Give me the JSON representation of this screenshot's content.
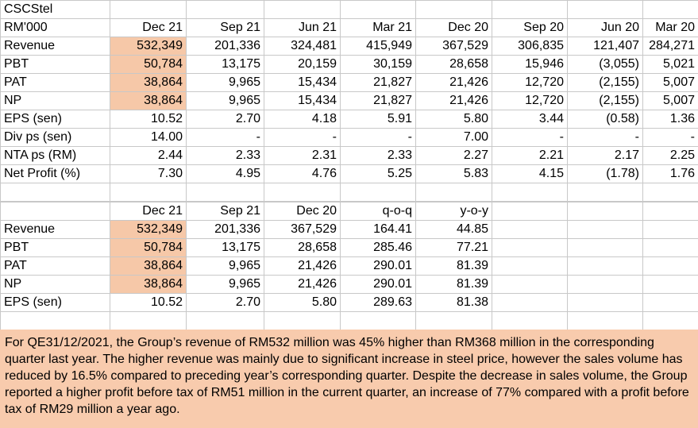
{
  "table1": {
    "title": "CSCStel",
    "unit": "RM'000",
    "columns": [
      "Dec 21",
      "Sep 21",
      "Jun 21",
      "Mar 21",
      "Dec 20",
      "Sep 20",
      "Jun 20",
      "Mar 20"
    ],
    "rows": [
      {
        "label": "Revenue",
        "values": [
          "532,349",
          "201,336",
          "324,481",
          "415,949",
          "367,529",
          "306,835",
          "121,407",
          "284,271"
        ]
      },
      {
        "label": "PBT",
        "values": [
          "50,784",
          "13,175",
          "20,159",
          "30,159",
          "28,658",
          "15,946",
          "(3,055)",
          "5,021"
        ]
      },
      {
        "label": "PAT",
        "values": [
          "38,864",
          "9,965",
          "15,434",
          "21,827",
          "21,426",
          "12,720",
          "(2,155)",
          "5,007"
        ]
      },
      {
        "label": "NP",
        "values": [
          "38,864",
          "9,965",
          "15,434",
          "21,827",
          "21,426",
          "12,720",
          "(2,155)",
          "5,007"
        ]
      },
      {
        "label": "EPS (sen)",
        "values": [
          "10.52",
          "2.70",
          "4.18",
          "5.91",
          "5.80",
          "3.44",
          "(0.58)",
          "1.36"
        ]
      },
      {
        "label": "Div ps (sen)",
        "values": [
          "14.00",
          "-",
          "-",
          "-",
          "7.00",
          "-",
          "-",
          "-"
        ]
      },
      {
        "label": "NTA ps (RM)",
        "values": [
          "2.44",
          "2.33",
          "2.31",
          "2.33",
          "2.27",
          "2.21",
          "2.17",
          "2.25"
        ]
      },
      {
        "label": "Net Profit (%)",
        "values": [
          "7.30",
          "4.95",
          "4.76",
          "5.25",
          "5.83",
          "4.15",
          "(1.78)",
          "1.76"
        ]
      }
    ]
  },
  "table2": {
    "columns": [
      "Dec 21",
      "Sep 21",
      "Dec 20",
      "q-o-q",
      "y-o-y"
    ],
    "rows": [
      {
        "label": "Revenue",
        "values": [
          "532,349",
          "201,336",
          "367,529",
          "164.41",
          "44.85"
        ]
      },
      {
        "label": "PBT",
        "values": [
          "50,784",
          "13,175",
          "28,658",
          "285.46",
          "77.21"
        ]
      },
      {
        "label": "PAT",
        "values": [
          "38,864",
          "9,965",
          "21,426",
          "290.01",
          "81.39"
        ]
      },
      {
        "label": "NP",
        "values": [
          "38,864",
          "9,965",
          "21,426",
          "290.01",
          "81.39"
        ]
      },
      {
        "label": "EPS (sen)",
        "values": [
          "10.52",
          "2.70",
          "5.80",
          "289.63",
          "81.38"
        ]
      }
    ]
  },
  "note": "For QE31/12/2021, the Group’s revenue of RM532 million was 45% higher than RM368 million in the corresponding quarter last year. The higher revenue was mainly due to significant increase in steel price, however the sales volume has reduced by 16.5% compared to preceding year’s corresponding quarter. Despite the decrease in sales volume, the Group reported a higher profit before tax of RM51 million in the current quarter, an increase of 77% compared with a profit before tax of RM29 million a year ago.",
  "colors": {
    "highlight": "#f6c8a8",
    "note_bg": "#f8cbad",
    "gridline": "#c8c8c8"
  }
}
